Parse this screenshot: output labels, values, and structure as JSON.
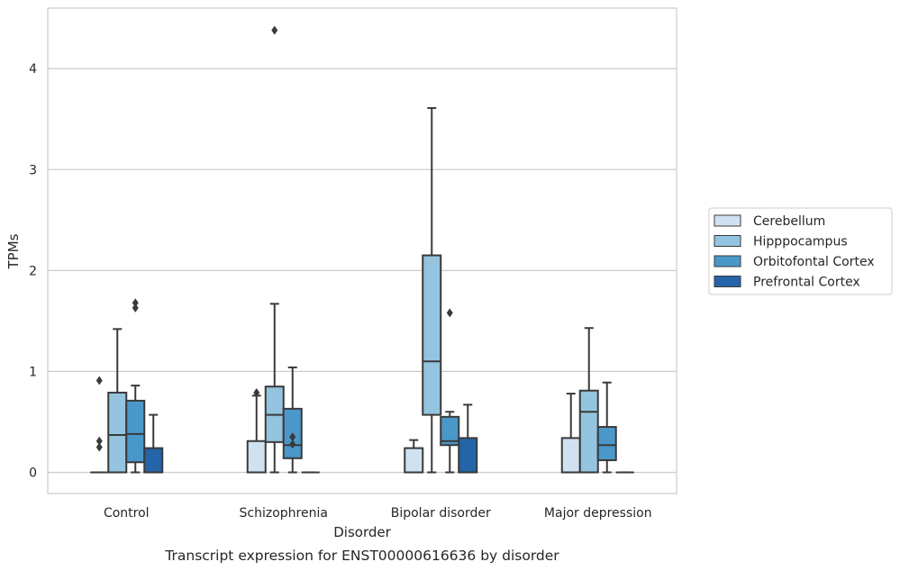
{
  "chart_data": {
    "type": "box",
    "title": "Transcript expression for ENST00000616636 by disorder",
    "xlabel": "Disorder",
    "ylabel": "TPMs",
    "ylim": [
      -0.21,
      4.6
    ],
    "yticks": [
      0,
      1,
      2,
      3,
      4
    ],
    "grid": true,
    "legend_position": "right",
    "categories": [
      "Control",
      "Schizophrenia",
      "Bipolar disorder",
      "Major depression"
    ],
    "series": [
      {
        "name": "Cerebellum",
        "color": "#d0e1f2",
        "boxes": [
          {
            "lo": 0,
            "q1": 0,
            "median": 0,
            "q3": 0,
            "hi": 0,
            "outliers": [
              0.91,
              0.31,
              0.25
            ]
          },
          {
            "lo": 0,
            "q1": 0,
            "median": 0,
            "q3": 0.31,
            "hi": 0.76,
            "outliers": [
              0.79
            ]
          },
          {
            "lo": 0,
            "q1": 0,
            "median": 0,
            "q3": 0.24,
            "hi": 0.32,
            "outliers": []
          },
          {
            "lo": 0,
            "q1": 0,
            "median": 0,
            "q3": 0.34,
            "hi": 0.78,
            "outliers": []
          }
        ]
      },
      {
        "name": "Hipppocampus",
        "color": "#94c4df",
        "boxes": [
          {
            "lo": 0,
            "q1": 0,
            "median": 0.37,
            "q3": 0.79,
            "hi": 1.42,
            "outliers": []
          },
          {
            "lo": 0,
            "q1": 0.3,
            "median": 0.57,
            "q3": 0.85,
            "hi": 1.67,
            "outliers": [
              4.38
            ]
          },
          {
            "lo": 0,
            "q1": 0.57,
            "median": 1.1,
            "q3": 2.15,
            "hi": 3.61,
            "outliers": []
          },
          {
            "lo": 0,
            "q1": 0,
            "median": 0.6,
            "q3": 0.81,
            "hi": 1.43,
            "outliers": []
          }
        ]
      },
      {
        "name": "Orbitofontal Cortex",
        "color": "#4a98c9",
        "boxes": [
          {
            "lo": 0,
            "q1": 0.1,
            "median": 0.38,
            "q3": 0.71,
            "hi": 0.86,
            "outliers": [
              1.68,
              1.63
            ]
          },
          {
            "lo": 0,
            "q1": 0.14,
            "median": 0.27,
            "q3": 0.63,
            "hi": 1.04,
            "outliers": [
              0.35,
              0.28
            ]
          },
          {
            "lo": 0,
            "q1": 0.27,
            "median": 0.31,
            "q3": 0.55,
            "hi": 0.6,
            "outliers": [
              1.58
            ]
          },
          {
            "lo": 0,
            "q1": 0.12,
            "median": 0.27,
            "q3": 0.45,
            "hi": 0.89,
            "outliers": []
          }
        ]
      },
      {
        "name": "Prefrontal Cortex",
        "color": "#2464a8",
        "boxes": [
          {
            "lo": 0,
            "q1": 0,
            "median": 0,
            "q3": 0.24,
            "hi": 0.57,
            "outliers": []
          },
          {
            "lo": 0,
            "q1": 0,
            "median": 0,
            "q3": 0,
            "hi": 0,
            "outliers": []
          },
          {
            "lo": 0,
            "q1": 0,
            "median": 0,
            "q3": 0.34,
            "hi": 0.67,
            "outliers": []
          },
          {
            "lo": 0,
            "q1": 0,
            "median": 0,
            "q3": 0,
            "hi": 0,
            "outliers": []
          }
        ]
      }
    ]
  }
}
